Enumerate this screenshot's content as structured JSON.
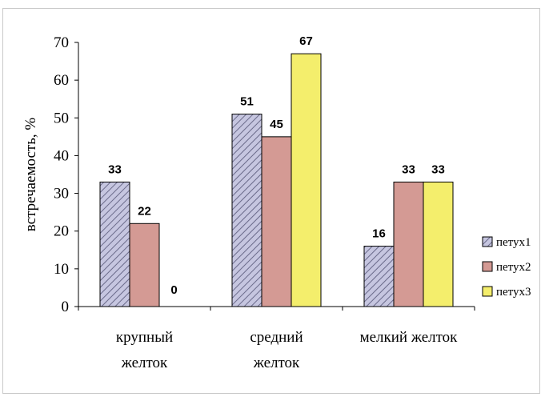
{
  "chart_data": {
    "type": "bar",
    "title": "",
    "xlabel": "",
    "ylabel": "встречаемость, %",
    "ylim": [
      0,
      70
    ],
    "yticks": [
      0,
      10,
      20,
      30,
      40,
      50,
      60,
      70
    ],
    "categories": [
      [
        "крупный",
        "желток"
      ],
      [
        "средний",
        "желток"
      ],
      [
        "мелкий желток"
      ]
    ],
    "series": [
      {
        "name": "петух1",
        "values": [
          33,
          51,
          16
        ],
        "color": "#b8b8d8",
        "pattern": "diagonal-hatch"
      },
      {
        "name": "петух2",
        "values": [
          22,
          45,
          33
        ],
        "color": "#d49a94",
        "pattern": "solid"
      },
      {
        "name": "петух3",
        "values": [
          0,
          67,
          33
        ],
        "color": "#f4ee6c",
        "pattern": "solid"
      }
    ],
    "data_labels": [
      [
        "33",
        "22",
        "0"
      ],
      [
        "51",
        "45",
        "67"
      ],
      [
        "16",
        "33",
        "33"
      ]
    ],
    "grid": false,
    "legend_position": "right"
  }
}
